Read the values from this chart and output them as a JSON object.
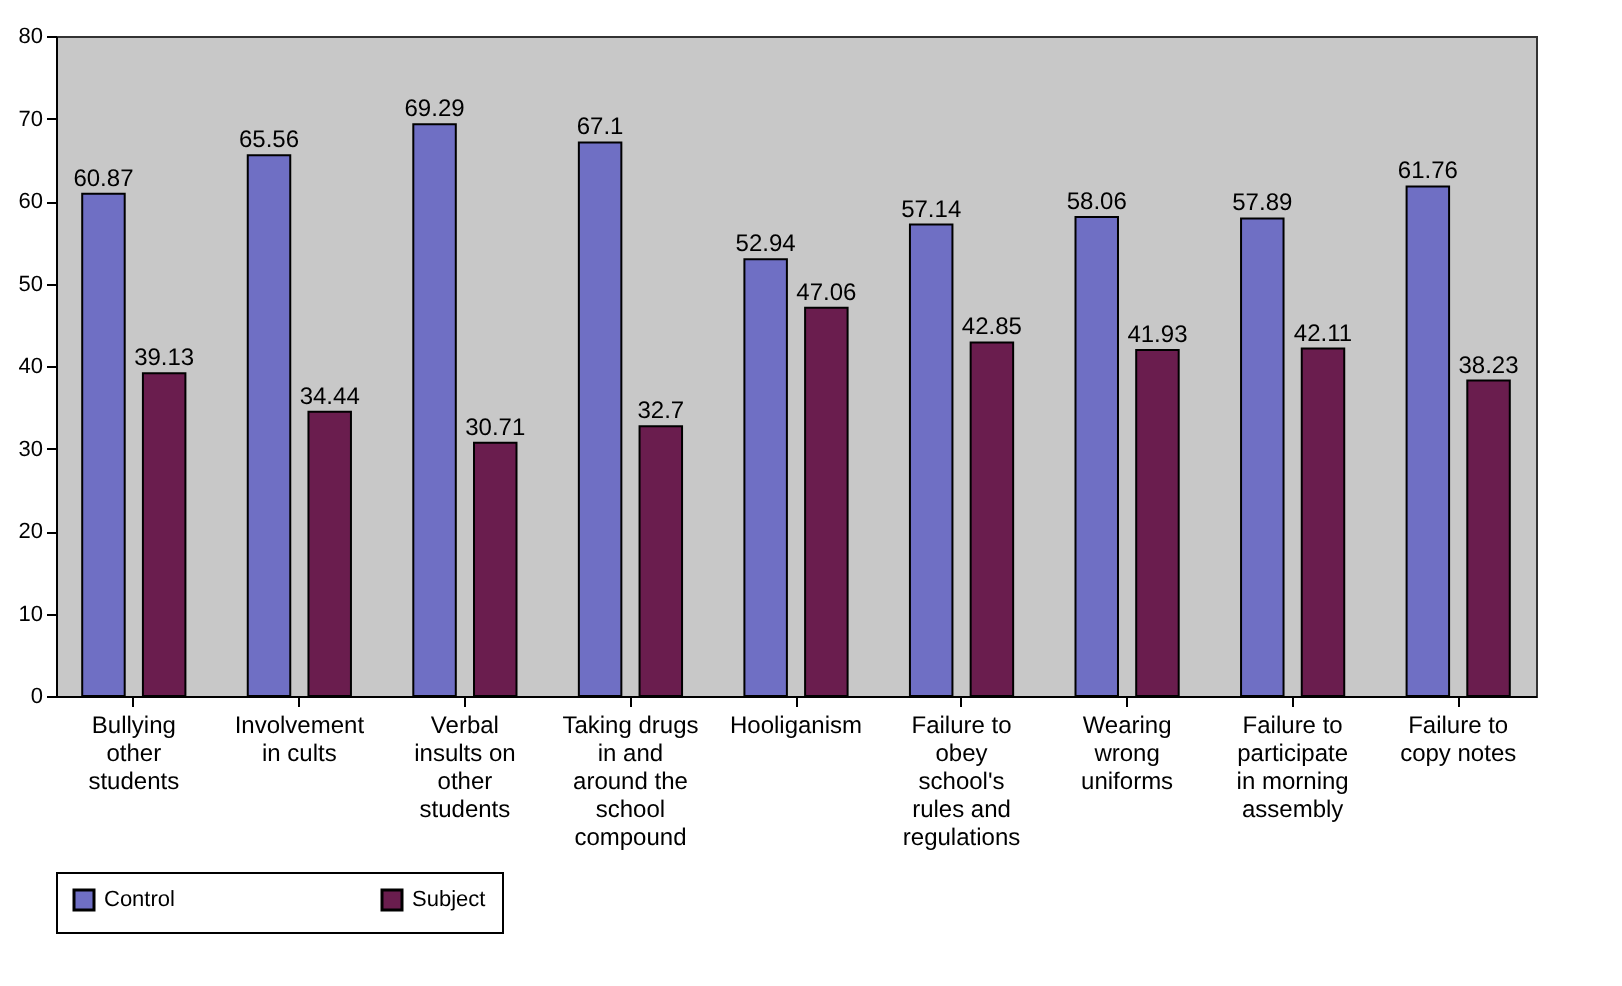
{
  "chart_data": {
    "type": "bar",
    "categories": [
      "Bullying other students",
      "Involvement in cults",
      "Verbal insults on other students",
      "Taking drugs in and around the school compound",
      "Hooliganism",
      "Failure to obey school's rules and regulations",
      "Wearing wrong uniforms",
      "Failure to participate in morning assembly",
      "Failure to copy notes"
    ],
    "series": [
      {
        "name": "Control",
        "color": "#6f6fc4",
        "values": [
          60.87,
          65.56,
          69.29,
          67.1,
          52.94,
          57.14,
          58.06,
          57.89,
          61.76
        ]
      },
      {
        "name": "Subject",
        "color": "#6a1d4e",
        "values": [
          39.13,
          34.44,
          30.71,
          32.7,
          47.06,
          42.85,
          41.93,
          42.11,
          38.23
        ]
      }
    ],
    "ylim": [
      0,
      80
    ],
    "yticks": [
      0,
      10,
      20,
      30,
      40,
      50,
      60,
      70,
      80
    ],
    "data_labels": true,
    "legend": "bottom"
  }
}
